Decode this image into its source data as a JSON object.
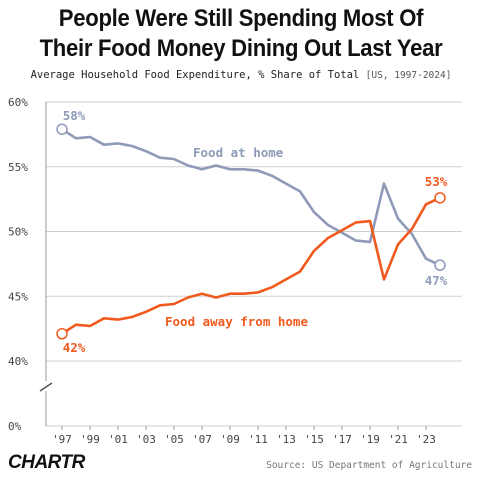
{
  "header": {
    "title_line1": "People Were Still Spending Most Of",
    "title_line2": "Their Food Money Dining Out Last Year",
    "subtitle": "Average Household Food Expenditure, % Share of Total",
    "subtitle_note": "[US, 1997-2024]"
  },
  "footer": {
    "brand": "CHARTR",
    "source": "Source: US Department of Agriculture"
  },
  "colors": {
    "home": "#8f9ab8",
    "away": "#f05a1e",
    "grid": "#cfcfcf",
    "axis_text": "#444444"
  },
  "chart_data": {
    "type": "line",
    "x": [
      1997,
      1998,
      1999,
      2000,
      2001,
      2002,
      2003,
      2004,
      2005,
      2006,
      2007,
      2008,
      2009,
      2010,
      2011,
      2012,
      2013,
      2014,
      2015,
      2016,
      2017,
      2018,
      2019,
      2020,
      2021,
      2022,
      2023,
      2024
    ],
    "x_tick_labels": [
      "'97",
      "'99",
      "'01",
      "'03",
      "'05",
      "'07",
      "'09",
      "'11",
      "'13",
      "'15",
      "'17",
      "'19",
      "'21",
      "'23"
    ],
    "x_tick_years": [
      1997,
      1999,
      2001,
      2003,
      2005,
      2007,
      2009,
      2011,
      2013,
      2015,
      2017,
      2019,
      2021,
      2023
    ],
    "y_ticks": [
      0,
      40,
      45,
      50,
      55,
      60
    ],
    "y_tick_labels": [
      "0%",
      "40%",
      "45%",
      "50%",
      "55%",
      "60%"
    ],
    "ylim": [
      0,
      60
    ],
    "axis_break": [
      0,
      40
    ],
    "grid": true,
    "series": [
      {
        "name": "Food at home",
        "values": [
          57.9,
          57.2,
          57.3,
          56.7,
          56.8,
          56.6,
          56.2,
          55.7,
          55.6,
          55.1,
          54.8,
          55.1,
          54.8,
          54.8,
          54.7,
          54.3,
          53.7,
          53.1,
          51.5,
          50.5,
          49.9,
          49.3,
          49.2,
          53.7,
          51.0,
          49.8,
          47.9,
          47.4
        ],
        "start_label": "58%",
        "end_label": "47%"
      },
      {
        "name": "Food away from home",
        "values": [
          42.1,
          42.8,
          42.7,
          43.3,
          43.2,
          43.4,
          43.8,
          44.3,
          44.4,
          44.9,
          45.2,
          44.9,
          45.2,
          45.2,
          45.3,
          45.7,
          46.3,
          46.9,
          48.5,
          49.5,
          50.1,
          50.7,
          50.8,
          46.3,
          49.0,
          50.2,
          52.1,
          52.6
        ],
        "start_label": "42%",
        "end_label": "53%"
      }
    ]
  }
}
